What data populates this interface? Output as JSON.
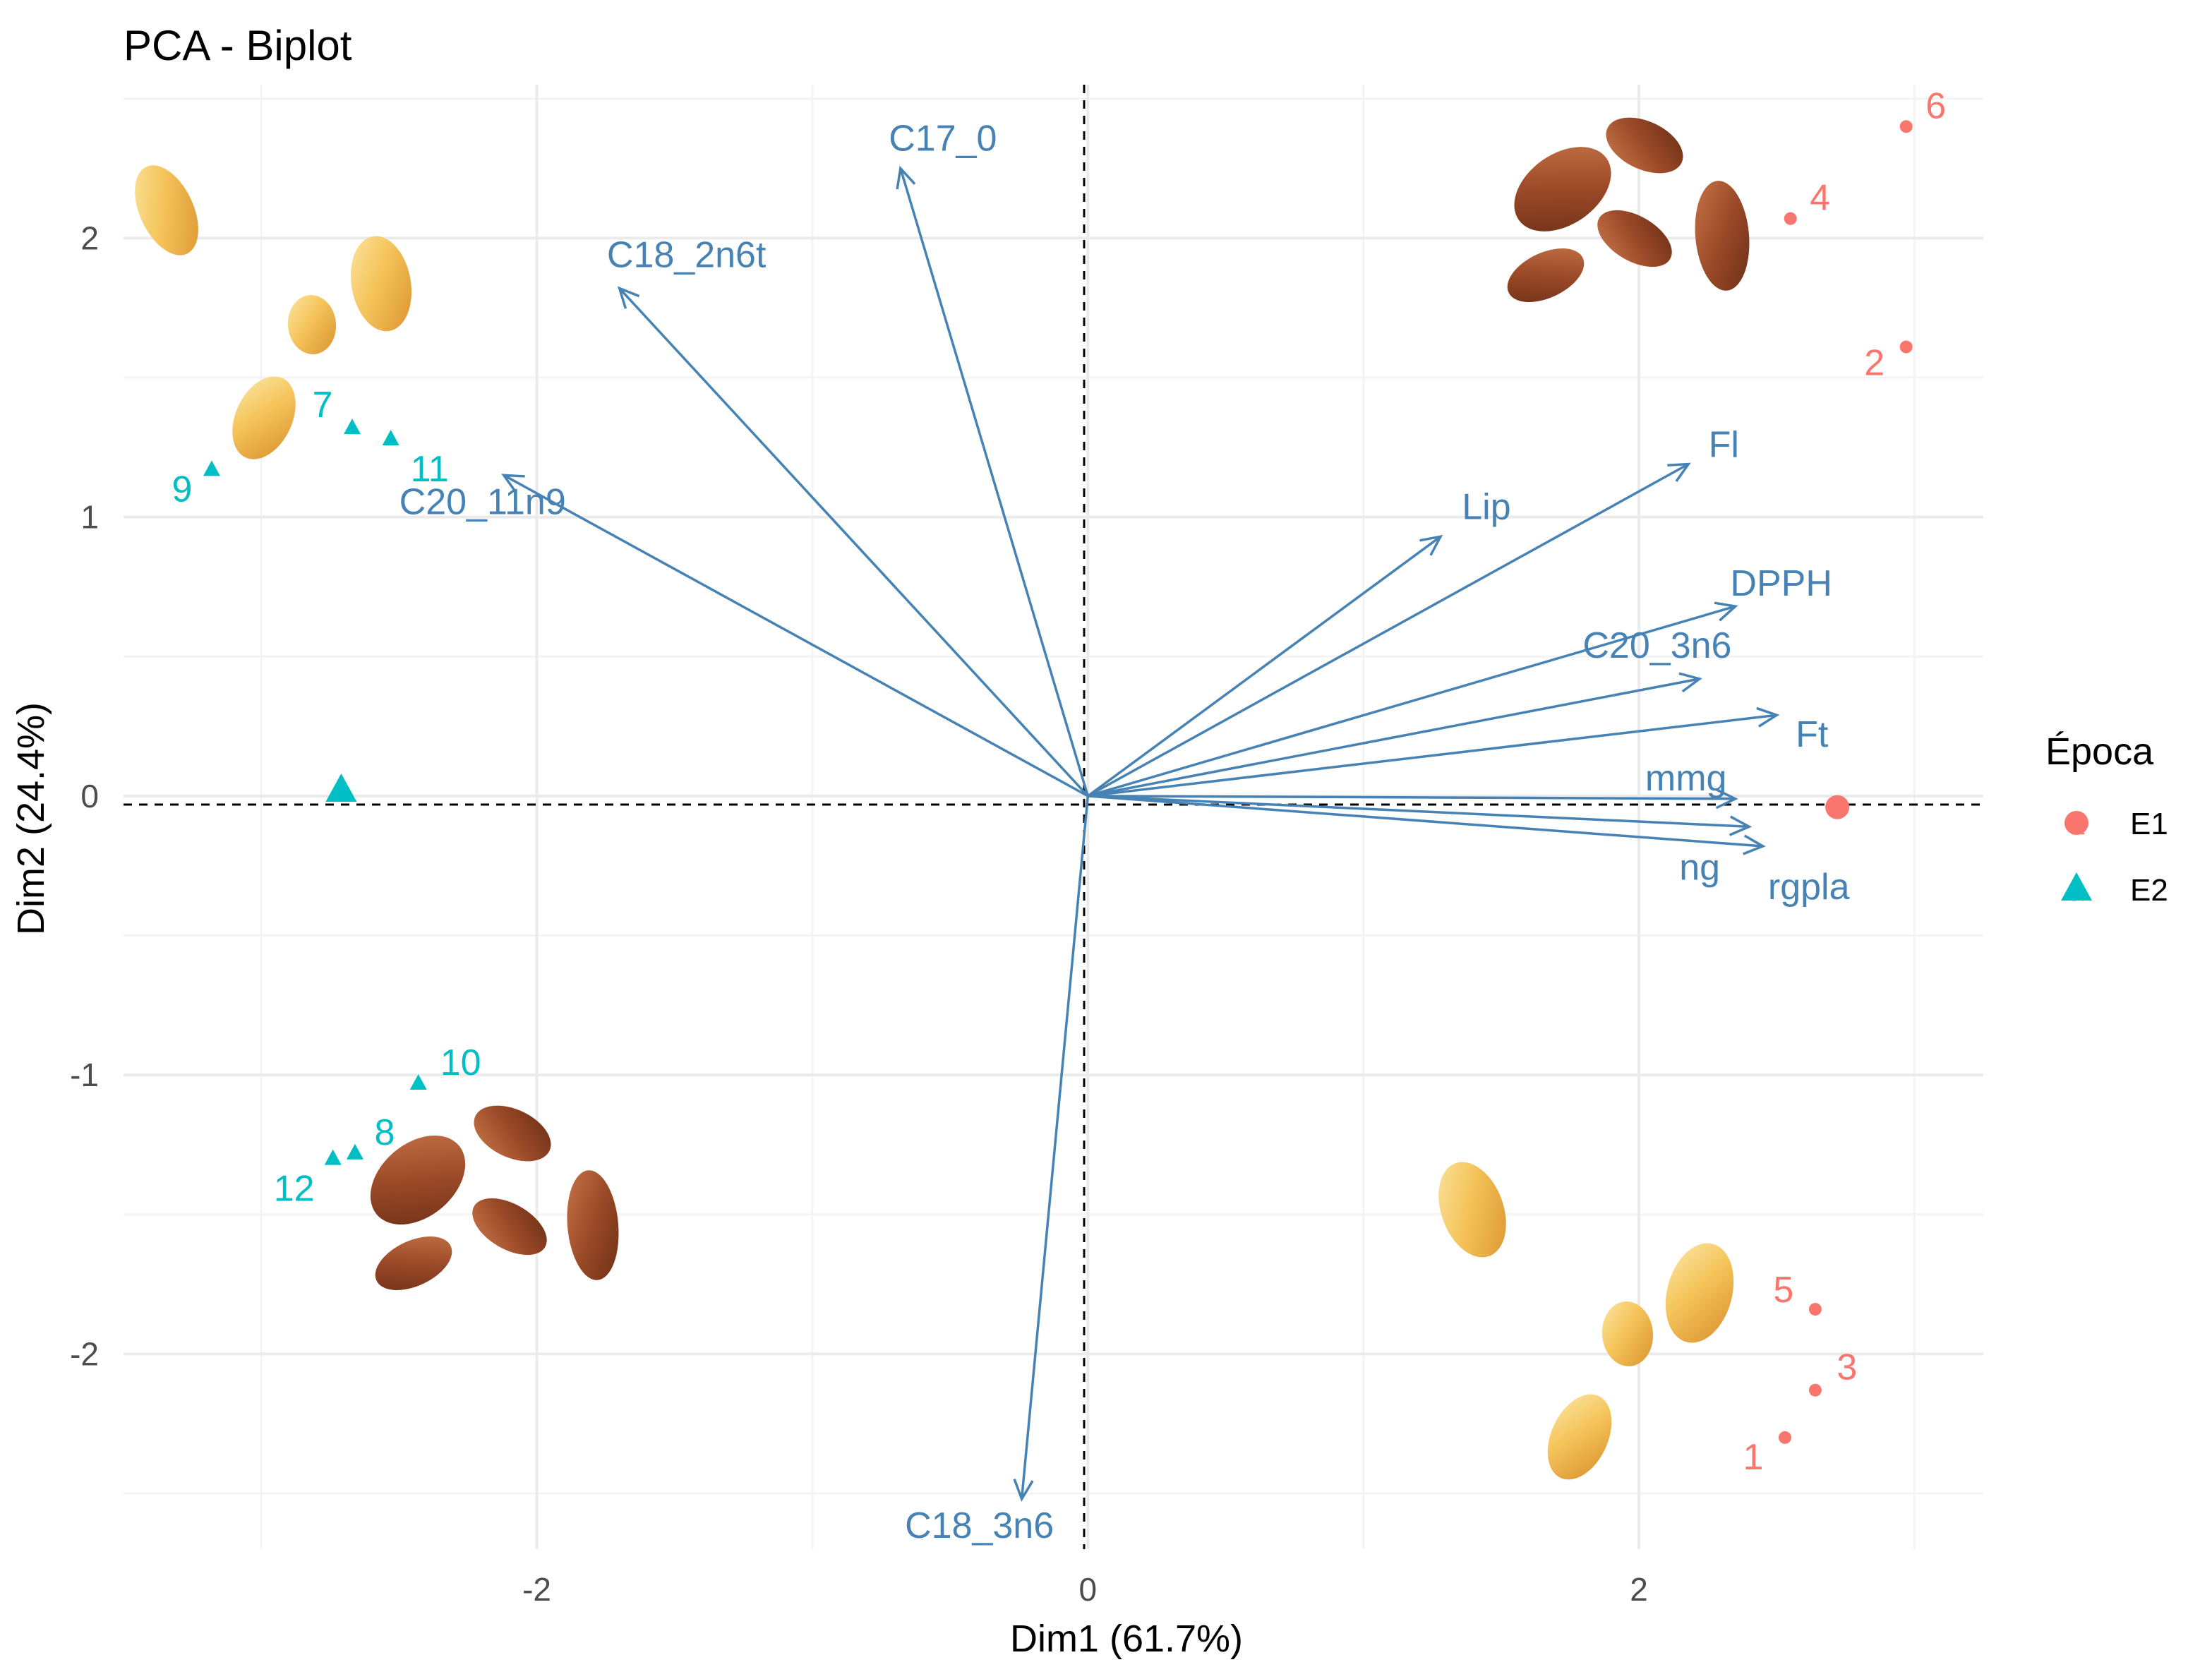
{
  "chart_data": {
    "type": "scatter",
    "subtype": "pca-biplot",
    "title": "PCA - Biplot",
    "xlabel": "Dim1 (61.7%)",
    "ylabel": "Dim2 (24.4%)",
    "xlim": [
      -3.5,
      3.25
    ],
    "ylim": [
      -2.7,
      2.55
    ],
    "x_ticks": [
      -2,
      0,
      2
    ],
    "y_ticks": [
      -2,
      -1,
      0,
      1,
      2
    ],
    "x_tick_labels": [
      "-2",
      "0",
      "2"
    ],
    "y_tick_labels": [
      "-2",
      "-1",
      "0",
      "1",
      "2"
    ],
    "grid": true,
    "reference_lines": "dashed lines at x=0 and y=0",
    "arrow_color": "#4682B4",
    "variables": [
      {
        "name": "C17_0",
        "x": -0.68,
        "y": 2.25
      },
      {
        "name": "C18_2n6t",
        "x": -1.7,
        "y": 1.82
      },
      {
        "name": "C20_11n9",
        "x": -2.12,
        "y": 1.15
      },
      {
        "name": "Fl",
        "x": 2.18,
        "y": 1.19
      },
      {
        "name": "Lip",
        "x": 1.28,
        "y": 0.93
      },
      {
        "name": "DPPH",
        "x": 2.35,
        "y": 0.68
      },
      {
        "name": "C20_3n6",
        "x": 2.22,
        "y": 0.42
      },
      {
        "name": "Ft",
        "x": 2.5,
        "y": 0.29
      },
      {
        "name": "mmg",
        "x": 2.35,
        "y": -0.01
      },
      {
        "name": "ng",
        "x": 2.4,
        "y": -0.11
      },
      {
        "name": "rgpla",
        "x": 2.45,
        "y": -0.18
      },
      {
        "name": "C18_3n6",
        "x": -0.24,
        "y": -2.52
      }
    ],
    "series": [
      {
        "name": "E1",
        "color": "#F8766D",
        "marker": "circle",
        "points": [
          {
            "label": "1",
            "x": 2.53,
            "y": -2.3
          },
          {
            "label": "2",
            "x": 2.97,
            "y": 1.61
          },
          {
            "label": "3",
            "x": 2.64,
            "y": -2.13
          },
          {
            "label": "4",
            "x": 2.55,
            "y": 2.07
          },
          {
            "label": "5",
            "x": 2.64,
            "y": -1.84
          },
          {
            "label": "6",
            "x": 2.97,
            "y": 2.4
          }
        ],
        "centroid": {
          "x": 2.72,
          "y": -0.04
        }
      },
      {
        "name": "E2",
        "color": "#00BFC4",
        "marker": "triangle",
        "points": [
          {
            "label": "7",
            "x": -2.67,
            "y": 1.32
          },
          {
            "label": "8",
            "x": -2.66,
            "y": -1.28
          },
          {
            "label": "9",
            "x": -3.18,
            "y": 1.17
          },
          {
            "label": "10",
            "x": -2.43,
            "y": -1.03
          },
          {
            "label": "11",
            "x": -2.53,
            "y": 1.28
          },
          {
            "label": "12",
            "x": -2.74,
            "y": -1.3
          }
        ],
        "centroid": {
          "x": -2.71,
          "y": 0.02
        }
      }
    ],
    "legend": {
      "title": "Época",
      "position": "right",
      "entries": [
        "E1",
        "E2"
      ],
      "key_glyph": "a"
    }
  },
  "seed_images": [
    {
      "kind": "golden-flaxseed",
      "quadrant": "top-left"
    },
    {
      "kind": "brown-flaxseed",
      "quadrant": "top-right"
    },
    {
      "kind": "brown-flaxseed",
      "quadrant": "bottom-left"
    },
    {
      "kind": "golden-flaxseed",
      "quadrant": "bottom-right"
    }
  ]
}
